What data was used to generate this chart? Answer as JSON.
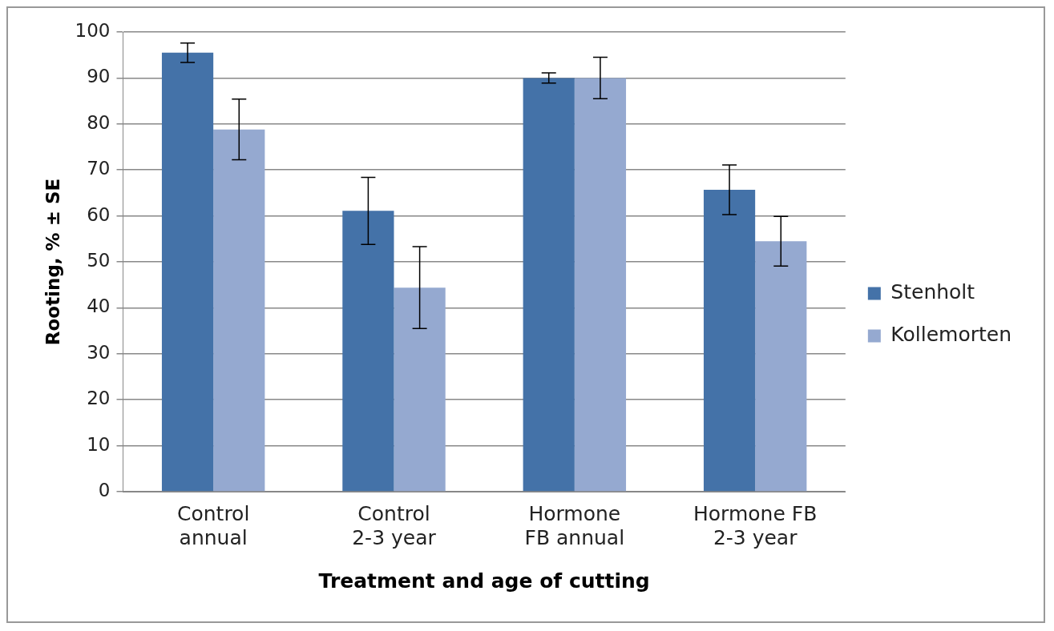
{
  "chart_data": {
    "type": "bar",
    "xlabel": "Treatment and age of cutting",
    "ylabel": "Rooting, % ± SE",
    "categories": [
      "Control annual",
      "Control 2-3 year",
      "Hormone FB annual",
      "Hormone FB 2-3 year"
    ],
    "series": [
      {
        "name": "Stenholt",
        "color": "#4472a8",
        "values": [
          95.5,
          61.1,
          90.0,
          65.7
        ],
        "errors": [
          2.1,
          7.3,
          1.1,
          5.4
        ]
      },
      {
        "name": "Kollemorten",
        "color": "#95a9d0",
        "values": [
          78.8,
          44.4,
          90.0,
          54.5
        ],
        "errors": [
          6.6,
          8.9,
          4.5,
          5.4
        ]
      }
    ],
    "ylim": [
      0,
      100
    ],
    "yticks": [
      0,
      10,
      20,
      30,
      40,
      50,
      60,
      70,
      80,
      90,
      100
    ],
    "grid": "y",
    "legend": "right"
  }
}
